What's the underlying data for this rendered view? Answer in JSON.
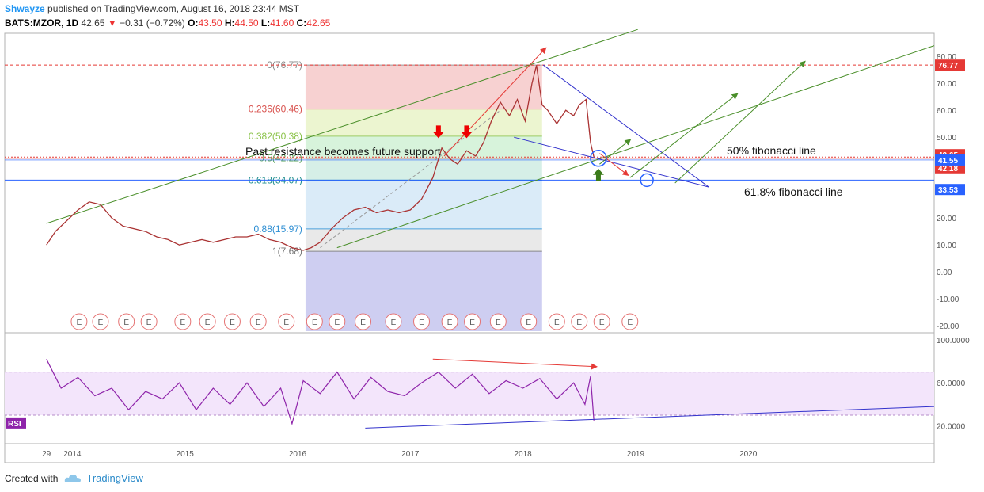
{
  "header": {
    "user": "Shwayze",
    "published": "published on TradingView.com, August 16, 2018 23:44 MST",
    "symbol": "BATS:MZOR, 1D",
    "last": "42.65",
    "change": "−0.31 (−0.72%)",
    "o_label": "O:",
    "o": "43.50",
    "h_label": "H:",
    "h": "44.50",
    "l_label": "L:",
    "l": "41.60",
    "c_label": "C:",
    "c": "42.65"
  },
  "footer": {
    "created_with": "Created with",
    "brand": "TradingView"
  },
  "annotations": {
    "support_text": "Past resistance becomes future support",
    "fib50_text": "50% fibonacci line",
    "fib618_text": "61.8% fibonacci line"
  },
  "indicator": {
    "label": "RSI"
  },
  "earnings_marker": "E",
  "colors": {
    "accent": "#2196f3",
    "price_line": "#e53935",
    "rsi_line": "#8e24aa",
    "trend_green": "#4a8f2a",
    "trend_blue": "#3232cc",
    "fib_blue": "#2962ff"
  },
  "price_tags": [
    {
      "value": "76.77",
      "color": "#e53935"
    },
    {
      "value": "42.65",
      "color": "#e53935"
    },
    {
      "value": "42.18",
      "color": "#e53935"
    },
    {
      "value": "41.55",
      "color": "#2962ff"
    },
    {
      "value": "33.53",
      "color": "#2962ff"
    }
  ],
  "chart_data": {
    "type": "line",
    "title": "BATS:MZOR, 1D",
    "x_ticks": [
      "29",
      "2014",
      "2015",
      "2016",
      "2017",
      "2018",
      "2019",
      "2020"
    ],
    "price_axis": {
      "ticks": [
        "80.00",
        "70.00",
        "60.00",
        "50.00",
        "40.00",
        "30.00",
        "20.00",
        "10.00",
        "0.00",
        "-10.00",
        "-20.00"
      ],
      "ylim": [
        -22,
        88
      ]
    },
    "rsi_axis": {
      "ticks": [
        "100.0000",
        "60.0000",
        "20.0000"
      ],
      "ylim": [
        5,
        105
      ],
      "bands": [
        30,
        70
      ]
    },
    "fibonacci": [
      {
        "label": "0(76.77)",
        "level": 0,
        "price": 76.77
      },
      {
        "label": "0.236(60.46)",
        "level": 0.236,
        "price": 60.46
      },
      {
        "label": "0.382(50.38)",
        "level": 0.382,
        "price": 50.38
      },
      {
        "label": "0.5(42.22)",
        "level": 0.5,
        "price": 42.22
      },
      {
        "label": "0.618(34.07)",
        "level": 0.618,
        "price": 34.07
      },
      {
        "label": "0.88(15.97)",
        "level": 0.88,
        "price": 15.97
      },
      {
        "label": "1(7.68)",
        "level": 1,
        "price": 7.68
      }
    ],
    "series": [
      {
        "name": "MZOR",
        "x": [
          2013.77,
          2013.85,
          2013.95,
          2014.05,
          2014.15,
          2014.25,
          2014.35,
          2014.45,
          2014.55,
          2014.65,
          2014.75,
          2014.85,
          2014.95,
          2015.05,
          2015.15,
          2015.25,
          2015.35,
          2015.45,
          2015.55,
          2015.65,
          2015.75,
          2015.85,
          2015.95,
          2016.05,
          2016.12,
          2016.2,
          2016.3,
          2016.4,
          2016.5,
          2016.6,
          2016.7,
          2016.8,
          2016.9,
          2017.0,
          2017.1,
          2017.2,
          2017.28,
          2017.35,
          2017.42,
          2017.5,
          2017.58,
          2017.65,
          2017.72,
          2017.8,
          2017.88,
          2017.95,
          2018.02,
          2018.08,
          2018.12,
          2018.17,
          2018.22,
          2018.3,
          2018.38,
          2018.45,
          2018.5,
          2018.56,
          2018.6,
          2018.63
        ],
        "values": [
          10,
          15,
          19,
          23,
          26,
          25,
          20,
          17,
          16,
          15,
          13,
          12,
          10,
          11,
          12,
          11,
          12,
          13,
          13,
          14,
          12,
          11,
          9,
          8,
          9,
          11,
          16,
          20,
          23,
          24,
          22,
          23,
          22,
          23,
          27,
          35,
          46,
          42,
          40,
          45,
          43,
          48,
          56,
          63,
          58,
          64,
          56,
          70,
          76.7,
          62,
          60,
          55,
          60,
          58,
          62,
          64,
          48,
          42.65
        ]
      },
      {
        "name": "RSI",
        "x": [
          2013.77,
          2013.9,
          2014.05,
          2014.2,
          2014.35,
          2014.5,
          2014.65,
          2014.8,
          2014.95,
          2015.1,
          2015.25,
          2015.4,
          2015.55,
          2015.7,
          2015.85,
          2015.95,
          2016.05,
          2016.2,
          2016.35,
          2016.5,
          2016.65,
          2016.8,
          2016.95,
          2017.1,
          2017.25,
          2017.4,
          2017.55,
          2017.7,
          2017.85,
          2018.0,
          2018.15,
          2018.3,
          2018.45,
          2018.55,
          2018.6,
          2018.63
        ],
        "values": [
          82,
          55,
          65,
          48,
          55,
          35,
          52,
          45,
          60,
          35,
          55,
          40,
          60,
          38,
          55,
          22,
          62,
          50,
          70,
          45,
          65,
          52,
          48,
          60,
          70,
          55,
          68,
          50,
          62,
          55,
          64,
          45,
          60,
          40,
          66,
          25
        ]
      }
    ]
  }
}
